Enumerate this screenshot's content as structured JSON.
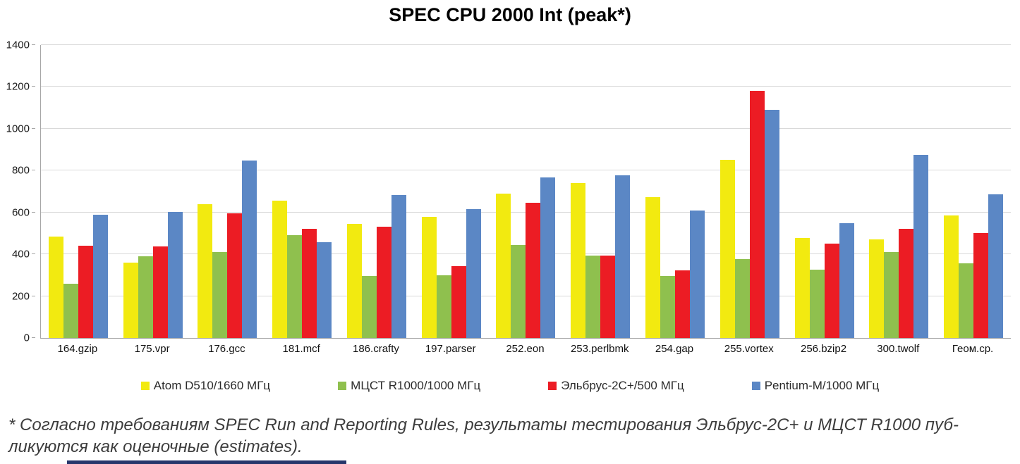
{
  "title": "SPEC CPU 2000 Int (peak*)",
  "footnote": {
    "line1": "* Согласно требованиям SPEC Run and Reporting Rules, результаты тестирования Эльбрус-2С+ и МЦСТ R1000 пуб-",
    "line2": "ликуются как оценочные (estimates)."
  },
  "colors": {
    "atom_yellow": "#f2ea10",
    "r1000_green": "#8fc04e",
    "elbrus_red": "#ec1c24",
    "pentium_blue": "#5b87c5",
    "gridline": "#d9d9d9",
    "axis": "#a6a6a6",
    "bottom_strip": "#26366b"
  },
  "chart_data": {
    "type": "bar",
    "title": "SPEC CPU 2000 Int (peak*)",
    "grid": true,
    "legend_position": "bottom",
    "ylim": [
      0,
      1400
    ],
    "ytick_step": 200,
    "xlabel": "",
    "ylabel": "",
    "categories": [
      "164.gzip",
      "175.vpr",
      "176.gcc",
      "181.mcf",
      "186.crafty",
      "197.parser",
      "252.eon",
      "253.perlbmk",
      "254.gap",
      "255.vortex",
      "256.bzip2",
      "300.twolf",
      "Геом.ср."
    ],
    "series": [
      {
        "name": "Atom D510/1660 МГц",
        "color": "#f2ea10",
        "values": [
          485,
          360,
          640,
          655,
          545,
          580,
          690,
          740,
          672,
          853,
          478,
          471,
          585
        ]
      },
      {
        "name": "МЦСТ R1000/1000 МГц",
        "color": "#8fc04e",
        "values": [
          260,
          390,
          410,
          490,
          296,
          300,
          444,
          394,
          296,
          378,
          328,
          410,
          358
        ]
      },
      {
        "name": "Эльбрус-2С+/500 МГц",
        "color": "#ec1c24",
        "values": [
          441,
          437,
          595,
          522,
          532,
          343,
          646,
          395,
          322,
          1180,
          451,
          523,
          503
        ]
      },
      {
        "name": "Pentium-M/1000 МГц",
        "color": "#5b87c5",
        "values": [
          590,
          603,
          848,
          458,
          683,
          616,
          767,
          777,
          610,
          1090,
          548,
          876,
          687
        ]
      }
    ]
  }
}
